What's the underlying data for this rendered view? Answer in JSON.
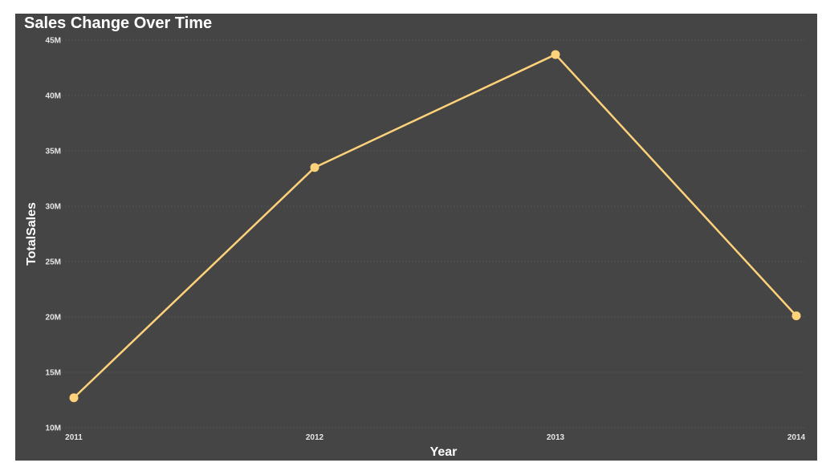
{
  "chart_data": {
    "type": "line",
    "title": "Sales Change Over Time",
    "xlabel": "Year",
    "ylabel": "TotalSales",
    "categories": [
      "2011",
      "2012",
      "2013",
      "2014"
    ],
    "series": [
      {
        "values": [
          12700000,
          33500000,
          43700000,
          20100000
        ]
      }
    ],
    "ylim": [
      10000000,
      45000000
    ],
    "yticks": [
      10000000,
      15000000,
      20000000,
      25000000,
      30000000,
      35000000,
      40000000,
      45000000
    ],
    "ytick_labels": [
      "10M",
      "15M",
      "20M",
      "25M",
      "30M",
      "35M",
      "40M",
      "45M"
    ],
    "grid": true,
    "grid_style": "dotted",
    "legend": "none",
    "colors": {
      "background": "#464545",
      "line": "#fdd27a",
      "grid": "#5e5e5e",
      "text": "#ffffff"
    }
  }
}
